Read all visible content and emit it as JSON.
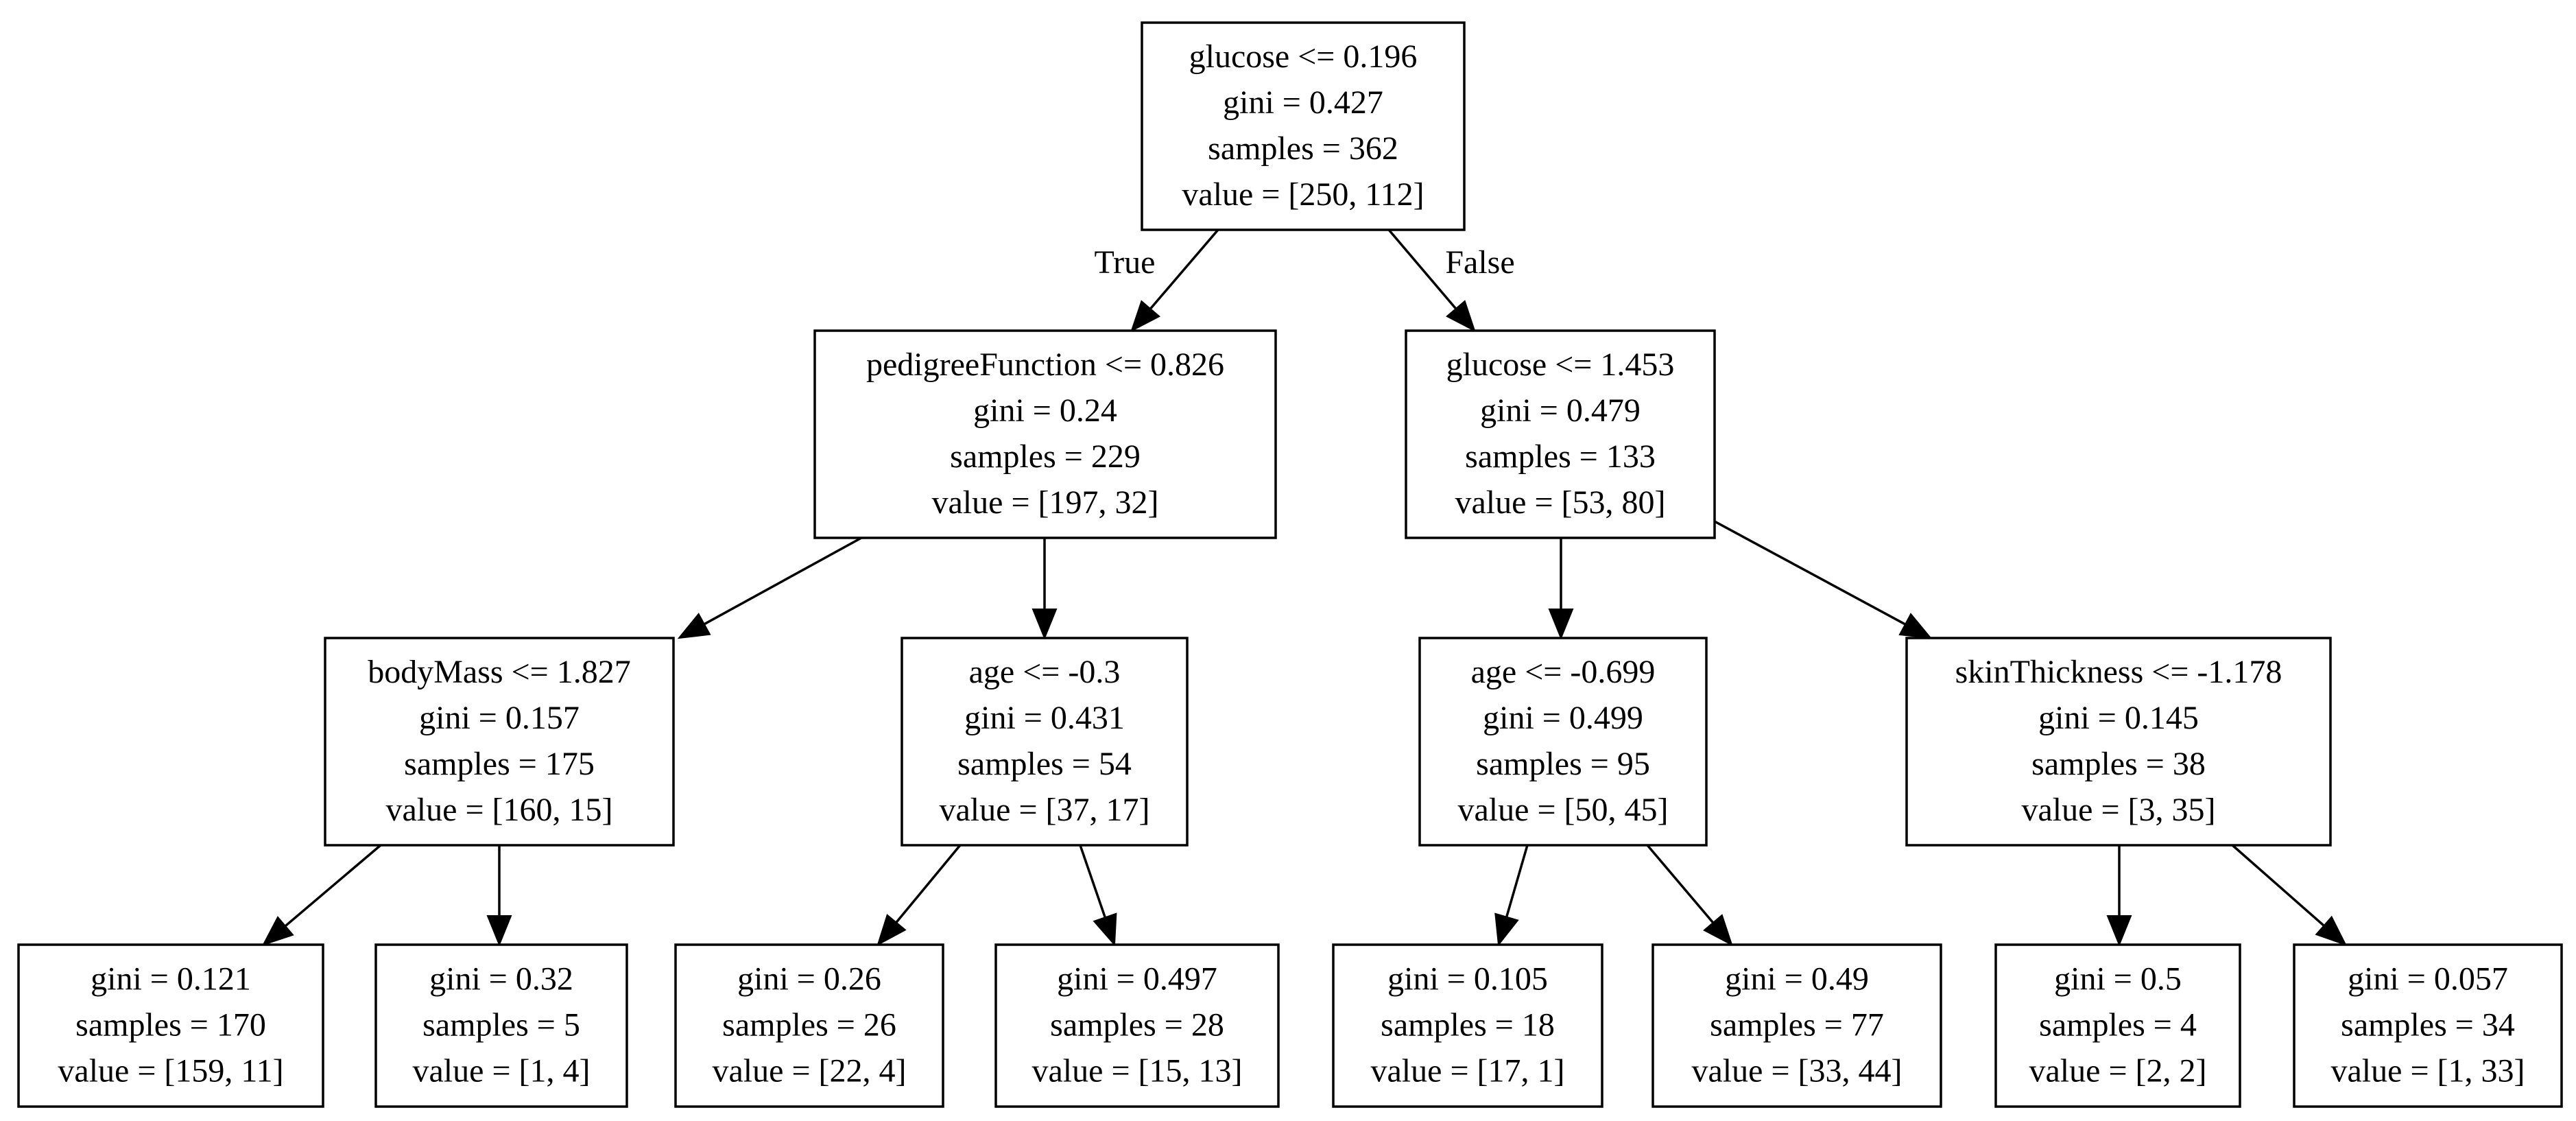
{
  "tree": {
    "nodes": [
      {
        "id": "n0",
        "lines": [
          "glucose <= 0.196",
          "gini = 0.427",
          "samples = 362",
          "value = [250, 112]"
        ]
      },
      {
        "id": "n1",
        "lines": [
          "pedigreeFunction <= 0.826",
          "gini = 0.24",
          "samples = 229",
          "value = [197, 32]"
        ]
      },
      {
        "id": "n2",
        "lines": [
          "glucose <= 1.453",
          "gini = 0.479",
          "samples = 133",
          "value = [53, 80]"
        ]
      },
      {
        "id": "n3",
        "lines": [
          "bodyMass <= 1.827",
          "gini = 0.157",
          "samples = 175",
          "value = [160, 15]"
        ]
      },
      {
        "id": "n4",
        "lines": [
          "age <= -0.3",
          "gini = 0.431",
          "samples = 54",
          "value = [37, 17]"
        ]
      },
      {
        "id": "n5",
        "lines": [
          "age <= -0.699",
          "gini = 0.499",
          "samples = 95",
          "value = [50, 45]"
        ]
      },
      {
        "id": "n6",
        "lines": [
          "skinThickness <= -1.178",
          "gini = 0.145",
          "samples = 38",
          "value = [3, 35]"
        ]
      },
      {
        "id": "n7",
        "lines": [
          "gini = 0.121",
          "samples = 170",
          "value = [159, 11]"
        ]
      },
      {
        "id": "n8",
        "lines": [
          "gini = 0.32",
          "samples = 5",
          "value = [1, 4]"
        ]
      },
      {
        "id": "n9",
        "lines": [
          "gini = 0.26",
          "samples = 26",
          "value = [22, 4]"
        ]
      },
      {
        "id": "n10",
        "lines": [
          "gini = 0.497",
          "samples = 28",
          "value = [15, 13]"
        ]
      },
      {
        "id": "n11",
        "lines": [
          "gini = 0.105",
          "samples = 18",
          "value = [17, 1]"
        ]
      },
      {
        "id": "n12",
        "lines": [
          "gini = 0.49",
          "samples = 77",
          "value = [33, 44]"
        ]
      },
      {
        "id": "n13",
        "lines": [
          "gini = 0.5",
          "samples = 4",
          "value = [2, 2]"
        ]
      },
      {
        "id": "n14",
        "lines": [
          "gini = 0.057",
          "samples = 34",
          "value = [1, 33]"
        ]
      }
    ],
    "edges": [
      {
        "from": "n0",
        "to": "n1",
        "label": "True"
      },
      {
        "from": "n0",
        "to": "n2",
        "label": "False"
      },
      {
        "from": "n1",
        "to": "n3",
        "label": ""
      },
      {
        "from": "n1",
        "to": "n4",
        "label": ""
      },
      {
        "from": "n2",
        "to": "n5",
        "label": ""
      },
      {
        "from": "n2",
        "to": "n6",
        "label": ""
      },
      {
        "from": "n3",
        "to": "n7",
        "label": ""
      },
      {
        "from": "n3",
        "to": "n8",
        "label": ""
      },
      {
        "from": "n4",
        "to": "n9",
        "label": ""
      },
      {
        "from": "n4",
        "to": "n10",
        "label": ""
      },
      {
        "from": "n5",
        "to": "n11",
        "label": ""
      },
      {
        "from": "n5",
        "to": "n12",
        "label": ""
      },
      {
        "from": "n6",
        "to": "n13",
        "label": ""
      },
      {
        "from": "n6",
        "to": "n14",
        "label": ""
      }
    ]
  }
}
